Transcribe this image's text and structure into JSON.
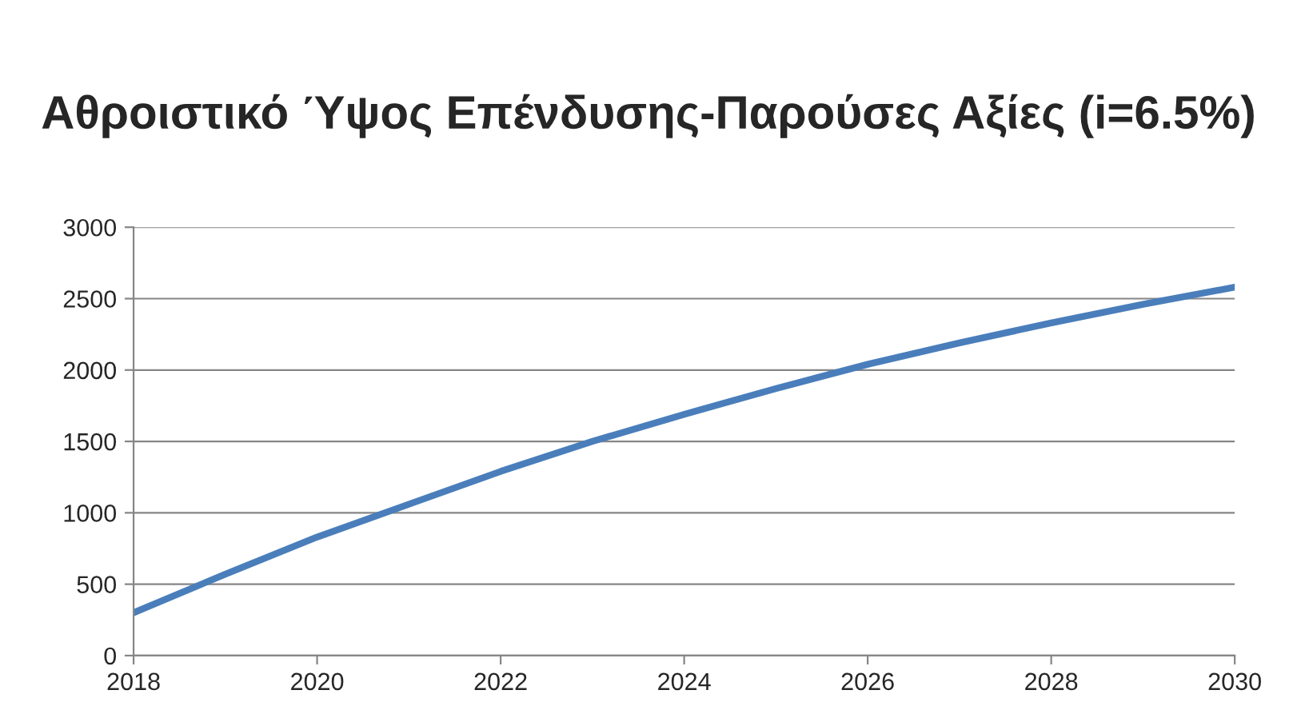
{
  "chart_data": {
    "type": "line",
    "title": "Αθροιστικό Ύψος Επένδυσης-Παρούσες Αξίες (i=6.5%)",
    "x": [
      2018,
      2019,
      2020,
      2021,
      2022,
      2023,
      2024,
      2025,
      2026,
      2027,
      2028,
      2029,
      2030
    ],
    "series": [
      {
        "color": "#4a7ebb",
        "values": [
          300,
          570,
          830,
          1060,
          1290,
          1500,
          1690,
          1870,
          2040,
          2190,
          2330,
          2460,
          2580
        ]
      }
    ],
    "xlim": [
      2018,
      2030
    ],
    "xticks": [
      2018,
      2020,
      2022,
      2024,
      2026,
      2028,
      2030
    ],
    "ylim": [
      0,
      3000
    ],
    "yticks": [
      0,
      500,
      1000,
      1500,
      2000,
      2500,
      3000
    ],
    "grid": "y",
    "legend": false,
    "marker": "none",
    "line_style": "solid"
  }
}
